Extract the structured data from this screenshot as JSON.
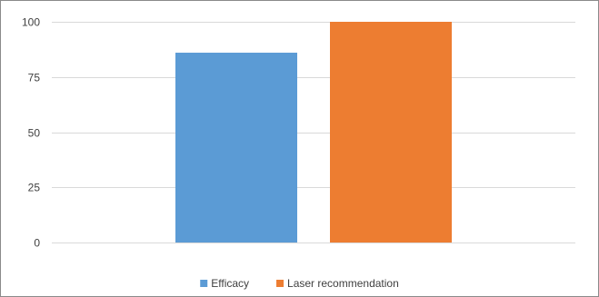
{
  "chart_data": {
    "type": "bar",
    "categories": [
      ""
    ],
    "series": [
      {
        "name": "Efficacy",
        "values": [
          86
        ],
        "color": "#5b9bd5"
      },
      {
        "name": "Laser recommendation",
        "values": [
          100
        ],
        "color": "#ed7d31"
      }
    ],
    "ylim": [
      0,
      100
    ],
    "yticks": [
      0,
      25,
      50,
      75,
      100
    ],
    "ytick_labels": [
      "0",
      "25",
      "50",
      "75",
      "100"
    ],
    "grid": true,
    "legend_position": "bottom",
    "title": "",
    "xlabel": "",
    "ylabel": ""
  }
}
